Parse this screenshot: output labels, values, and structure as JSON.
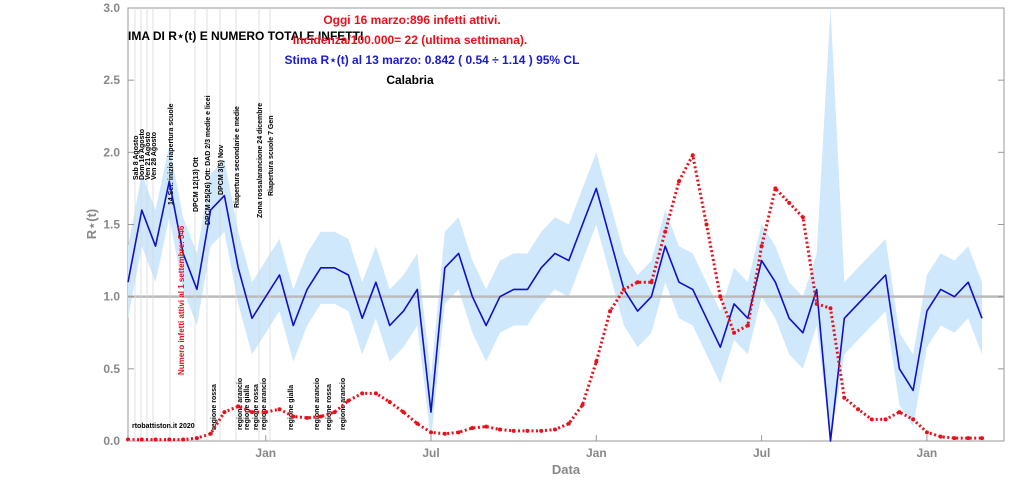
{
  "chart_data": {
    "type": "line",
    "title": "IMA DI R⋆(t) E NUMERO TOTALE INFETTI",
    "x_label": "Data",
    "y_label": "R⋆(t)",
    "header_lines": [
      {
        "text": "Oggi 16 marzo:896 infetti attivi.",
        "color": "#e8101a"
      },
      {
        "text": "Incidenza/100.000= 22 (ultima settimana).",
        "color": "#e8101a"
      },
      {
        "text": "Stima R⋆(t) al 13 marzo: 0.842 ( 0.54 ÷ 1.14 ) 95% CL",
        "color": "#1a1ad0"
      },
      {
        "text": "Calabria",
        "color": "#000000"
      }
    ],
    "side_note": "Numero infetti attivi al 1 settembre: 546",
    "credit": "rtobattiston.it 2020",
    "event_annotations": [
      "Sab 8 Agosto",
      "Dom 16 Agosto",
      "Ven 21 Agosto",
      "Ven 28 Agosto",
      "14 Set: inizio riapertura scuole",
      "DPCM 12(13) Ott",
      "DPCM 25(26) Ott: DAD 2/3 medie e licei",
      "DPCM 3(5) Nov",
      "Riapertura secondarie e medie",
      "Zona rossa/arancione 24 dicembre",
      "Riapertura scuole 7 Gen"
    ],
    "region_annotations": [
      "regione rossa",
      "regione arancio",
      "regione gialla",
      "regione rossa",
      "regione arancio",
      "regione gialla",
      "regione arancio",
      "regione rossa",
      "regione arancio"
    ],
    "categories": [
      null,
      null,
      null,
      null,
      null,
      null,
      null,
      null,
      null,
      null,
      "Jan",
      null,
      null,
      null,
      null,
      null,
      null,
      null,
      null,
      null,
      null,
      null,
      "Jul",
      null,
      null,
      null,
      null,
      null,
      null,
      null,
      null,
      null,
      null,
      null,
      "Jan",
      null,
      null,
      null,
      null,
      null,
      null,
      null,
      null,
      null,
      null,
      null,
      "Jul",
      null,
      null,
      null,
      null,
      null,
      null,
      null,
      null,
      null,
      null,
      null,
      "Jan",
      null,
      null,
      null,
      null
    ],
    "ylim": [
      0,
      3
    ],
    "yticks": [
      {
        "value": 0,
        "label": "0.0"
      },
      0.5,
      {
        "value": 1,
        "label": "1.0"
      },
      1.5,
      {
        "value": 2,
        "label": "2.0"
      },
      2.5,
      {
        "value": 3,
        "label": "3.0"
      }
    ],
    "hline": 1,
    "band": {
      "color": "#cfe8fb",
      "lower": [
        0.85,
        1.35,
        1.1,
        1.55,
        1.05,
        0.8,
        1.35,
        1.45,
        0.95,
        0.6,
        0.75,
        0.9,
        0.55,
        0.8,
        0.95,
        0.95,
        0.9,
        0.6,
        0.85,
        0.55,
        0.65,
        0.8,
        0,
        0.95,
        1.05,
        0.75,
        0.55,
        0.75,
        0.8,
        0.8,
        0.95,
        1.05,
        1.0,
        1.25,
        1.5,
        1.15,
        0.8,
        0.65,
        0.75,
        1.1,
        0.85,
        0.8,
        0.6,
        0.4,
        0.7,
        0.6,
        1.0,
        0.85,
        0.6,
        0.5,
        0.8,
        0,
        0.6,
        0.7,
        0.8,
        0.9,
        0.25,
        0.1,
        0.65,
        0.8,
        0.75,
        0.85,
        0.6
      ],
      "upper": [
        1.35,
        1.85,
        1.6,
        2.05,
        1.55,
        1.3,
        1.85,
        1.95,
        1.45,
        1.1,
        1.25,
        1.4,
        1.05,
        1.3,
        1.45,
        1.45,
        1.4,
        1.1,
        1.35,
        1.05,
        1.15,
        1.3,
        0.45,
        1.45,
        1.55,
        1.25,
        1.05,
        1.25,
        1.3,
        1.3,
        1.45,
        1.55,
        1.5,
        1.75,
        2.0,
        1.65,
        1.3,
        1.15,
        1.25,
        1.6,
        1.35,
        1.3,
        1.1,
        0.9,
        1.2,
        1.1,
        1.5,
        1.35,
        1.1,
        1.0,
        1.3,
        3.0,
        1.1,
        1.2,
        1.3,
        1.4,
        0.75,
        0.6,
        1.15,
        1.3,
        1.25,
        1.35,
        1.1
      ]
    },
    "series": [
      {
        "color": "#1010c8",
        "style": "line",
        "values": [
          1.1,
          1.6,
          1.35,
          1.8,
          1.3,
          1.05,
          1.6,
          1.7,
          1.2,
          0.85,
          1.0,
          1.15,
          0.8,
          1.05,
          1.2,
          1.2,
          1.15,
          0.85,
          1.1,
          0.8,
          0.9,
          1.05,
          0.2,
          1.2,
          1.3,
          1.0,
          0.8,
          1.0,
          1.05,
          1.05,
          1.2,
          1.3,
          1.25,
          1.5,
          1.75,
          1.4,
          1.05,
          0.9,
          1.0,
          1.35,
          1.1,
          1.05,
          0.85,
          0.65,
          0.95,
          0.85,
          1.25,
          1.1,
          0.85,
          0.75,
          1.05,
          0.0,
          0.85,
          0.95,
          1.05,
          1.15,
          0.5,
          0.35,
          0.9,
          1.05,
          1.0,
          1.1,
          0.85
        ]
      },
      {
        "color": "#e8101a",
        "style": "dots",
        "values": [
          0.01,
          0.01,
          0.01,
          0.01,
          0.01,
          0.02,
          0.05,
          0.2,
          0.24,
          0.2,
          0.2,
          0.22,
          0.17,
          0.16,
          0.17,
          0.2,
          0.28,
          0.33,
          0.33,
          0.27,
          0.2,
          0.12,
          0.06,
          0.05,
          0.06,
          0.09,
          0.1,
          0.08,
          0.07,
          0.07,
          0.07,
          0.08,
          0.12,
          0.25,
          0.55,
          0.9,
          1.05,
          1.1,
          1.1,
          1.45,
          1.8,
          1.98,
          1.5,
          1.0,
          0.75,
          0.8,
          1.35,
          1.75,
          1.65,
          1.55,
          0.95,
          0.92,
          0.3,
          0.22,
          0.15,
          0.15,
          0.2,
          0.15,
          0.06,
          0.03,
          0.02,
          0.02,
          0.02
        ]
      }
    ]
  }
}
